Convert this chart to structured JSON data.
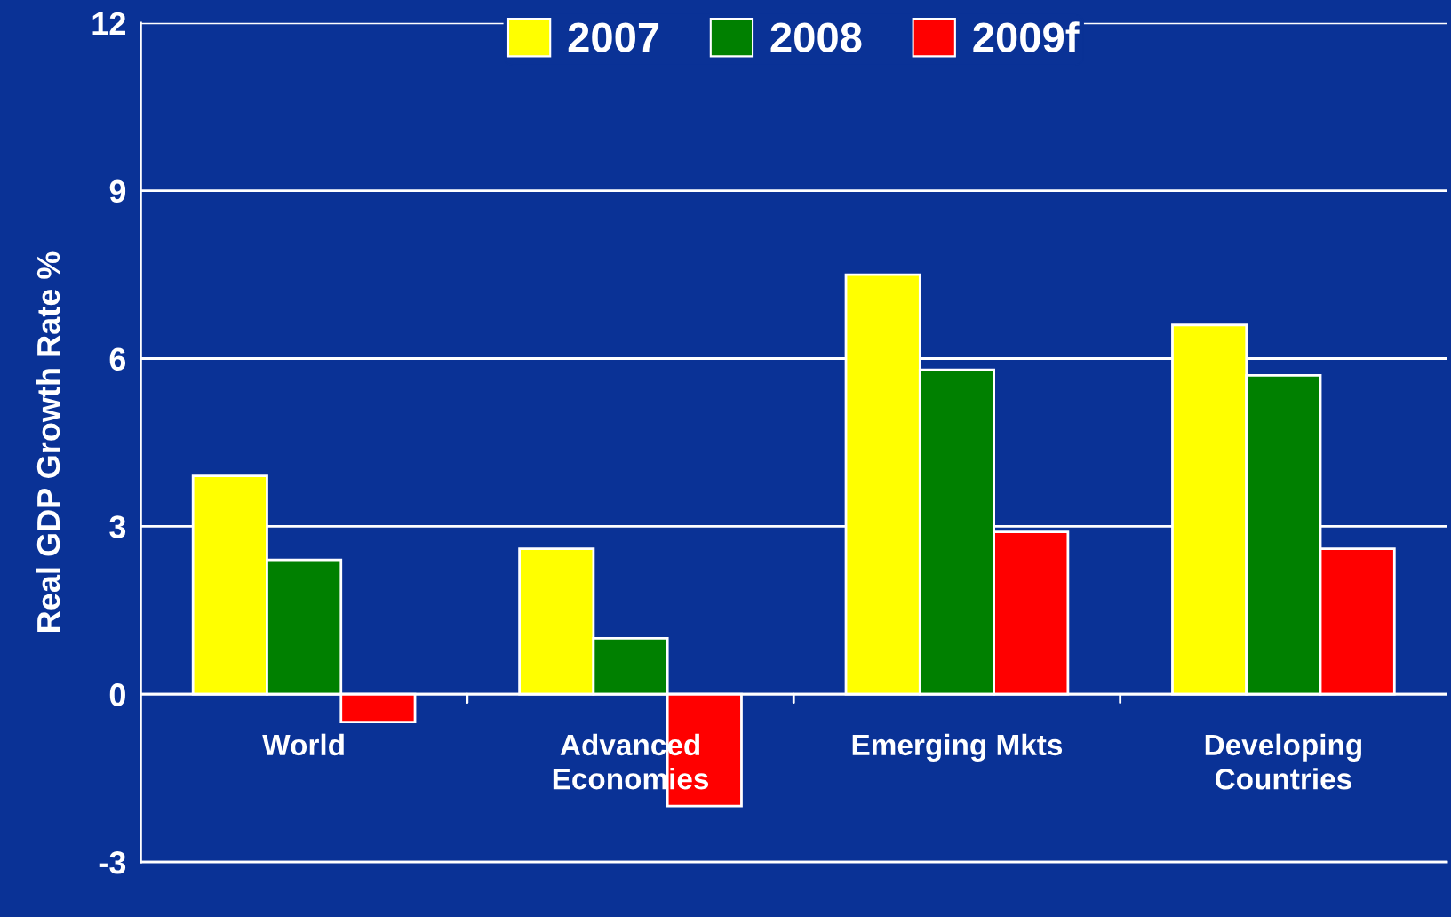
{
  "chart_data": {
    "type": "bar",
    "ylabel": "Real GDP Growth Rate %",
    "categories": [
      "World",
      "Advanced Economies",
      "Emerging Mkts",
      "Developing Countries"
    ],
    "series": [
      {
        "name": "2007",
        "color": "#ffff00",
        "values": [
          3.9,
          2.6,
          7.5,
          6.6
        ]
      },
      {
        "name": "2008",
        "color": "#008000",
        "values": [
          2.4,
          1.0,
          5.8,
          5.7
        ]
      },
      {
        "name": "2009f",
        "color": "#ff0000",
        "values": [
          -0.5,
          -2.0,
          2.9,
          2.6
        ]
      }
    ],
    "ylim": [
      -3,
      12
    ],
    "yticks": [
      -3,
      0,
      3,
      6,
      9,
      12
    ],
    "grid": "y",
    "legend": "top"
  }
}
